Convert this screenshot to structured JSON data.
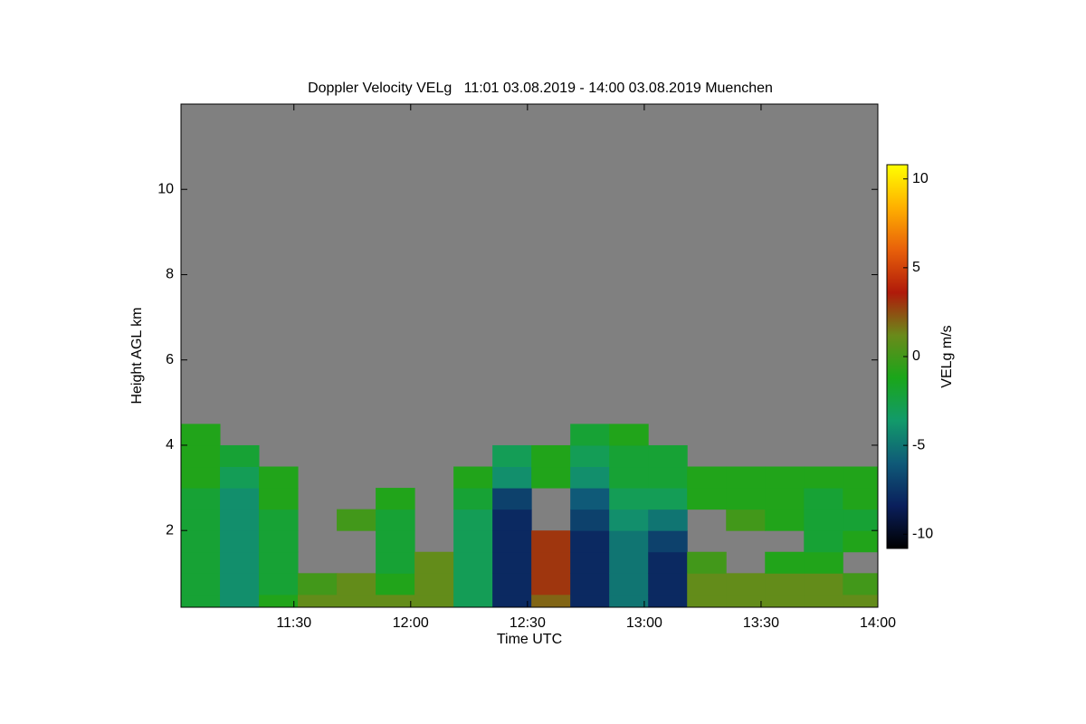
{
  "chart_data": {
    "type": "heatmap",
    "title": "Doppler Velocity VELg   11:01 03.08.2019 - 14:00 03.08.2019 Muenchen",
    "xlabel": "Time UTC",
    "ylabel": "Height AGL km",
    "colorbar_label": "VELg m/s",
    "xlim": [
      661,
      840
    ],
    "ylim": [
      0.2,
      12
    ],
    "xticks": [
      {
        "value": 690,
        "label": "11:30"
      },
      {
        "value": 720,
        "label": "12:00"
      },
      {
        "value": 750,
        "label": "12:30"
      },
      {
        "value": 780,
        "label": "13:00"
      },
      {
        "value": 810,
        "label": "13:30"
      },
      {
        "value": 840,
        "label": "14:00"
      }
    ],
    "yticks": [
      2,
      4,
      6,
      8,
      10
    ],
    "clim": [
      -10.8,
      10.8
    ],
    "cticks": [
      -10,
      -5,
      0,
      5,
      10
    ],
    "colormap": [
      "#000000",
      "#0a1f5c",
      "#0f5a78",
      "#129a6a",
      "#1aa61a",
      "#6a8a1a",
      "#b01a0a",
      "#e8600a",
      "#ffb000",
      "#ffff00"
    ],
    "background": "#808080",
    "x_edges": [
      661,
      671,
      681,
      691,
      701,
      711,
      721,
      731,
      741,
      751,
      761,
      771,
      781,
      791,
      801,
      811,
      821,
      831,
      840
    ],
    "y_edges": [
      0.2,
      0.5,
      1,
      1.5,
      2,
      2.5,
      3,
      3.5,
      4,
      4.5,
      5
    ],
    "z": [
      [
        -2,
        -2,
        -2,
        -2,
        -2,
        -2,
        -1,
        -1,
        -1,
        null
      ],
      [
        -4,
        -4,
        -4,
        -4,
        -4,
        -4,
        -3,
        -2,
        null,
        null
      ],
      [
        -1,
        -2,
        -2,
        -2,
        -2,
        -1,
        -1,
        null,
        null,
        null
      ],
      [
        1,
        0,
        null,
        null,
        null,
        null,
        null,
        null,
        null,
        null
      ],
      [
        1,
        1,
        null,
        null,
        0,
        null,
        null,
        null,
        null,
        null
      ],
      [
        1,
        -1,
        -2,
        -2,
        -2,
        -1,
        null,
        null,
        null,
        null
      ],
      [
        1,
        1,
        1,
        null,
        null,
        null,
        null,
        null,
        null,
        null
      ],
      [
        -3,
        -3,
        -3,
        -3,
        -3,
        -2,
        -1,
        null,
        null,
        null
      ],
      [
        -8,
        -8,
        -8,
        -8,
        -8,
        -7,
        -4,
        -3,
        null,
        null
      ],
      [
        2,
        3,
        3,
        3,
        null,
        null,
        -1,
        -1,
        null,
        null
      ],
      [
        -8,
        -8,
        -8,
        -8,
        -7,
        -6,
        -4,
        -3,
        -2,
        null
      ],
      [
        -5,
        -5,
        -5,
        -5,
        -4,
        -3,
        -2,
        -2,
        -1,
        null
      ],
      [
        -8,
        -8,
        -8,
        -7,
        -5,
        -3,
        -2,
        -2,
        null,
        null
      ],
      [
        1,
        1,
        0,
        null,
        null,
        -1,
        -1,
        null,
        null,
        null
      ],
      [
        1,
        1,
        null,
        null,
        0,
        -1,
        -1,
        null,
        null,
        null
      ],
      [
        1,
        1,
        -1,
        null,
        -1,
        -1,
        -1,
        null,
        null,
        null
      ],
      [
        1,
        1,
        -1,
        -2,
        -2,
        -2,
        -1,
        null,
        null,
        null
      ],
      [
        1,
        0,
        null,
        -1,
        -2,
        -1,
        -1,
        null,
        null,
        null
      ]
    ]
  }
}
